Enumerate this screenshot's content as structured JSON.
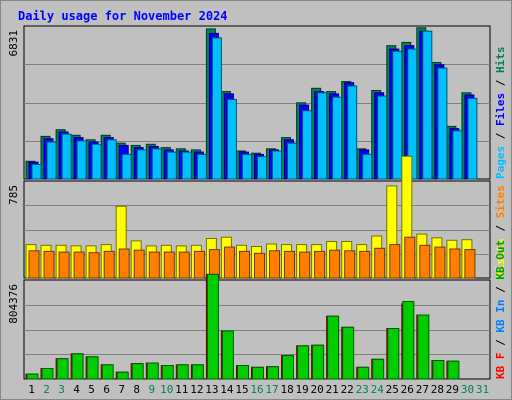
{
  "chart_data": {
    "type": "bar",
    "title": "Daily usage for November 2024",
    "days": [
      "1",
      "2",
      "3",
      "4",
      "5",
      "6",
      "7",
      "8",
      "9",
      "10",
      "11",
      "12",
      "13",
      "14",
      "15",
      "16",
      "17",
      "18",
      "19",
      "20",
      "21",
      "22",
      "23",
      "24",
      "25",
      "26",
      "27",
      "28",
      "29",
      "30",
      "31"
    ],
    "weekend_days": [
      "2",
      "3",
      "9",
      "10",
      "16",
      "17",
      "23",
      "24",
      "30",
      "31"
    ],
    "panels": [
      {
        "ymax_label": "6831",
        "ymax": 6831,
        "right_labels": [
          {
            "text": "Pages",
            "color": "#00c0ff"
          },
          {
            "text": " / ",
            "color": "#000000"
          },
          {
            "text": "Files",
            "color": "#0000ff"
          },
          {
            "text": " / ",
            "color": "#000000"
          },
          {
            "text": "Hits",
            "color": "#00805c"
          }
        ],
        "series": [
          {
            "name": "Hits",
            "color": "#00805c",
            "values": [
              790,
              1900,
              2200,
              1950,
              1750,
              1950,
              1600,
              1500,
              1550,
              1400,
              1350,
              1300,
              6700,
              3900,
              1250,
              1150,
              1350,
              1850,
              3400,
              4050,
              3900,
              4350,
              1350,
              3950,
              5950,
              6100,
              6750,
              5200,
              2350,
              3850,
              null
            ]
          },
          {
            "name": "Files",
            "color": "#0000ff",
            "values": [
              750,
              1800,
              2100,
              1850,
              1650,
              1850,
              1500,
              1400,
              1450,
              1300,
              1250,
              1200,
              6500,
              3800,
              1200,
              1100,
              1300,
              1750,
              3300,
              3900,
              3800,
              4300,
              1300,
              3850,
              5800,
              5950,
              6600,
              5100,
              2250,
              3750,
              null
            ]
          },
          {
            "name": "Pages",
            "color": "#00c0ff",
            "values": [
              650,
              1650,
              2000,
              1700,
              1550,
              1750,
              1100,
              1300,
              1350,
              1200,
              1200,
              1100,
              6300,
              3550,
              1100,
              1000,
              1250,
              1600,
              3050,
              3850,
              3650,
              4150,
              1100,
              3700,
              5700,
              5800,
              6600,
              4950,
              2150,
              3600,
              null
            ]
          }
        ]
      },
      {
        "ymax_label": "785",
        "ymax": 785,
        "right_labels": [
          {
            "text": "Visits",
            "color": "#ffff00"
          },
          {
            "text": " / ",
            "color": "#000000"
          },
          {
            "text": "Sites",
            "color": "#ff8000"
          }
        ],
        "series": [
          {
            "name": "Visits",
            "color": "#ffff00",
            "values": [
              270,
              265,
              265,
              260,
              260,
              270,
              580,
              300,
              260,
              265,
              260,
              265,
              320,
              330,
              265,
              255,
              275,
              270,
              270,
              270,
              295,
              295,
              270,
              340,
              745,
              985,
              355,
              325,
              305,
              310,
              null
            ]
          },
          {
            "name": "Sites",
            "color": "#ff8000",
            "values": [
              220,
              215,
              210,
              210,
              205,
              215,
              235,
              225,
              210,
              210,
              210,
              215,
              230,
              250,
              215,
              200,
              220,
              215,
              210,
              215,
              225,
              220,
              215,
              240,
              270,
              330,
              265,
              250,
              235,
              230,
              null
            ]
          }
        ]
      },
      {
        "ymax_label": "804376",
        "ymax": 804376,
        "right_labels": [
          {
            "text": "KB F",
            "color": "#ff0000"
          },
          {
            "text": " / ",
            "color": "#000000"
          },
          {
            "text": "KB In",
            "color": "#0080ff"
          },
          {
            "text": " / ",
            "color": "#000000"
          },
          {
            "text": "KB Out",
            "color": "#00a000"
          }
        ],
        "series": [
          {
            "name": "KB F",
            "color": "#ff0000",
            "values": [
              40000,
              85000,
              165000,
              205000,
              180000,
              115000,
              55000,
              125000,
              130000,
              110000,
              115000,
              115000,
              850000,
              390000,
              110000,
              95000,
              100000,
              190000,
              270000,
              275000,
              510000,
              420000,
              95000,
              160000,
              410000,
              610000,
              520000,
              150000,
              145000,
              null,
              null
            ]
          },
          {
            "name": "KB Out",
            "color": "#00cc00",
            "values": [
              40000,
              85000,
              165000,
              205000,
              180000,
              115000,
              55000,
              125000,
              130000,
              110000,
              115000,
              115000,
              850000,
              390000,
              110000,
              95000,
              100000,
              190000,
              270000,
              275000,
              510000,
              420000,
              95000,
              160000,
              410000,
              630000,
              520000,
              150000,
              145000,
              null,
              null
            ]
          }
        ]
      }
    ]
  }
}
